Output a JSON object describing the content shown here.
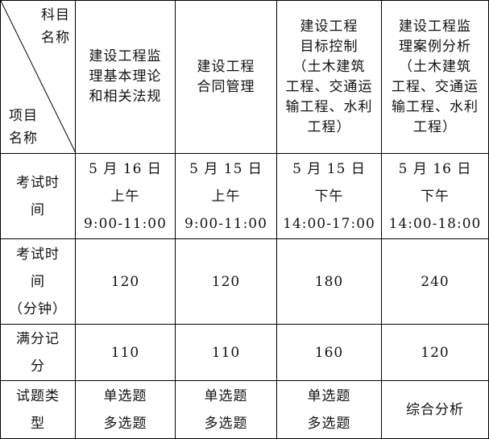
{
  "corner": {
    "top_right": [
      "科目",
      "名称"
    ],
    "bottom_left": [
      "项目",
      "名称"
    ]
  },
  "subjects": [
    [
      "建设工程监",
      "理基本理论",
      "和相关法规"
    ],
    [
      "建设工程",
      "合同管理"
    ],
    [
      "建设工程",
      "目标控制",
      "（土木建筑",
      "工程、交通运",
      "输工程、水利",
      "工程）"
    ],
    [
      "建设工程监",
      "理案例分析",
      "（土木建筑",
      "工程、交通运",
      "输工程、水利",
      "工程）"
    ]
  ],
  "rows": [
    {
      "label": [
        "考试时",
        "间"
      ],
      "cells": [
        [
          "5 月 16 日",
          "上午",
          "9:00-11:00"
        ],
        [
          "5 月 15 日",
          "上午",
          "9:00-11:00"
        ],
        [
          "5 月 15 日",
          "下午",
          "14:00-17:00"
        ],
        [
          "5 月 16 日",
          "下午",
          "14:00-18:00"
        ]
      ]
    },
    {
      "label": [
        "考试时",
        "间",
        "（分钟）"
      ],
      "cells": [
        [
          "120"
        ],
        [
          "120"
        ],
        [
          "180"
        ],
        [
          "240"
        ]
      ]
    },
    {
      "label": [
        "满分记",
        "分"
      ],
      "cells": [
        [
          "110"
        ],
        [
          "110"
        ],
        [
          "160"
        ],
        [
          "120"
        ]
      ]
    },
    {
      "label": [
        "试题类",
        "型"
      ],
      "cells": [
        [
          "单选题",
          "多选题"
        ],
        [
          "单选题",
          "多选题"
        ],
        [
          "单选题",
          "多选题"
        ],
        [
          "综合分析"
        ]
      ]
    }
  ]
}
